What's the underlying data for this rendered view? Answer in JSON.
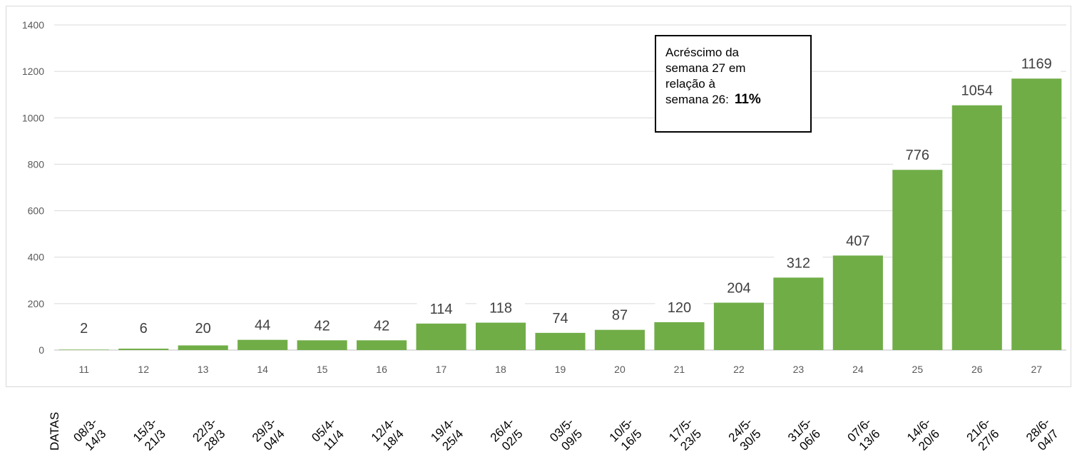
{
  "chart_data": {
    "type": "bar",
    "categories": [
      "11",
      "12",
      "13",
      "14",
      "15",
      "16",
      "17",
      "18",
      "19",
      "20",
      "21",
      "22",
      "23",
      "24",
      "25",
      "26",
      "27"
    ],
    "values": [
      2,
      6,
      20,
      44,
      42,
      42,
      114,
      118,
      74,
      87,
      120,
      204,
      312,
      407,
      776,
      1054,
      1169
    ],
    "data_labels": [
      "2",
      "6",
      "20",
      "44",
      "42",
      "42",
      "114",
      "118",
      "74",
      "87",
      "120",
      "204",
      "312",
      "407",
      "776",
      "1054",
      "1169"
    ],
    "y_ticks": [
      "0",
      "200",
      "400",
      "600",
      "800",
      "1000",
      "1200",
      "1400"
    ],
    "ylim": [
      0,
      1400
    ],
    "grid": true,
    "bar_color": "#70ad47",
    "date_axis_title": "DATAS",
    "date_ranges": [
      [
        "08/3-",
        "14/3"
      ],
      [
        "15/3-",
        "21/3"
      ],
      [
        "22/3-",
        "28/3"
      ],
      [
        "29/3-",
        "04/4"
      ],
      [
        "05/4-",
        "11/4"
      ],
      [
        "12/4-",
        "18/4"
      ],
      [
        "19/4-",
        "25/4"
      ],
      [
        "26/4-",
        "02/5"
      ],
      [
        "03/5-",
        "09/5"
      ],
      [
        "10/5-",
        "16/5"
      ],
      [
        "17/5-",
        "23/5"
      ],
      [
        "24/5-",
        "30/5"
      ],
      [
        "31/5-",
        "06/6"
      ],
      [
        "07/6-",
        "13/6"
      ],
      [
        "14/6-",
        "20/6"
      ],
      [
        "21/6-",
        "27/6"
      ],
      [
        "28/6-",
        "04/7"
      ]
    ],
    "annotation": {
      "lines": [
        "Acréscimo da",
        "semana 27 em",
        "relação à",
        "semana 26:"
      ],
      "highlight": "11%"
    }
  }
}
